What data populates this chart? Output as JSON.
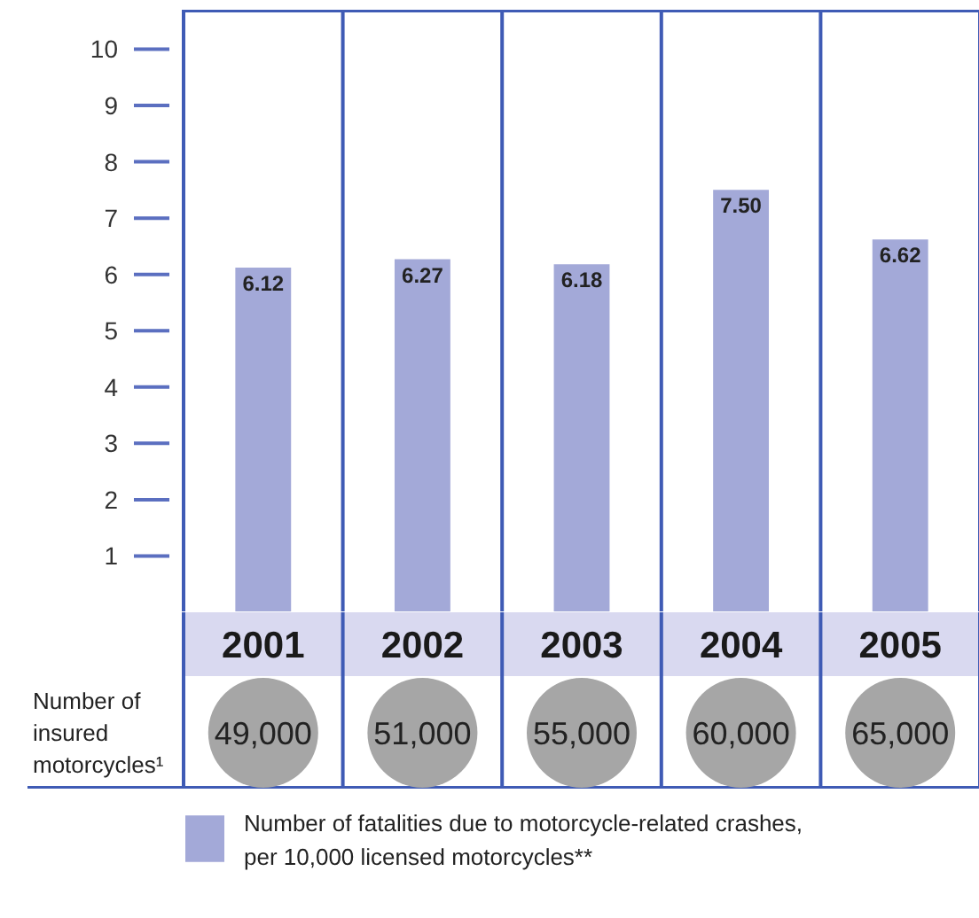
{
  "chart_data": {
    "type": "bar",
    "categories": [
      "2001",
      "2002",
      "2003",
      "2004",
      "2005"
    ],
    "series": [
      {
        "name": "Number of fatalities due to motorcycle-related crashes, per 10,000 licensed motorcycles**",
        "color": "#a3a9d8",
        "values": [
          6.12,
          6.27,
          6.18,
          7.5,
          6.62
        ]
      }
    ],
    "ylim": [
      0,
      10.7
    ],
    "yticks": [
      1,
      2,
      3,
      4,
      5,
      6,
      7,
      8,
      9,
      10
    ],
    "value_labels": [
      "6.12",
      "6.27",
      "6.18",
      "7.50",
      "6.62"
    ],
    "grid": false,
    "legend": "bottom",
    "tick_labels": "y",
    "annotations": [
      "Number of insured motorcycles¹",
      "49,000",
      "51,000",
      "55,000",
      "60,000",
      "65,000"
    ]
  }
}
